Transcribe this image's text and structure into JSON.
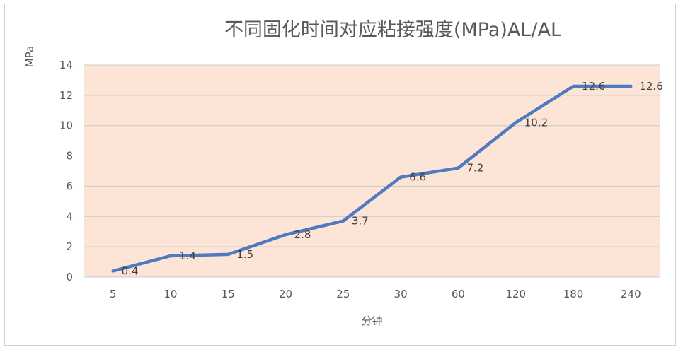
{
  "chart_data": {
    "type": "line",
    "title": "不同固化时间对应粘接强度(MPa)AL/AL",
    "xlabel": "分钟",
    "ylabel": "MPa",
    "categories": [
      "5",
      "10",
      "15",
      "20",
      "25",
      "30",
      "60",
      "120",
      "180",
      "240"
    ],
    "series": [
      {
        "values": [
          0.4,
          1.4,
          1.5,
          2.8,
          3.7,
          6.6,
          7.2,
          10.2,
          12.6,
          12.6
        ],
        "labels": [
          "0.4",
          "1.4",
          "1.5",
          "2.8",
          "3.7",
          "6.6",
          "7.2",
          "10.2",
          "12.6",
          "12.6"
        ]
      }
    ],
    "yticks": [
      "0",
      "2",
      "4",
      "6",
      "8",
      "10",
      "12",
      "14"
    ],
    "ylim": [
      0,
      14
    ],
    "grid": true,
    "plot_background": "#fce4d6",
    "line_color": "#4f7ac0",
    "grid_color": "#c9c9c9"
  }
}
